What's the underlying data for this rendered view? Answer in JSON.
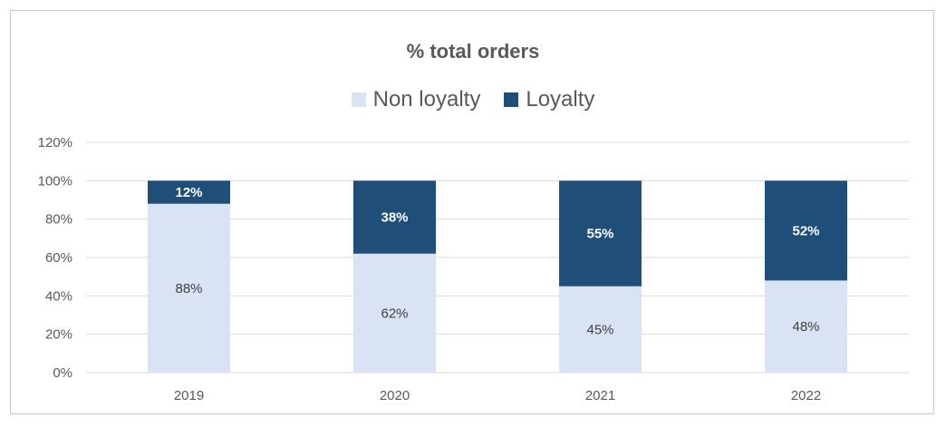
{
  "chart_data": {
    "type": "bar",
    "stacked": true,
    "title": "% total orders",
    "categories": [
      "2019",
      "2020",
      "2021",
      "2022"
    ],
    "series": [
      {
        "name": "Non loyalty",
        "values": [
          88,
          62,
          45,
          48
        ],
        "labels": [
          "88%",
          "62%",
          "45%",
          "48%"
        ],
        "color": "#dae3f3",
        "label_color": "#404040"
      },
      {
        "name": "Loyalty",
        "values": [
          12,
          38,
          55,
          52
        ],
        "labels": [
          "12%",
          "38%",
          "55%",
          "52%"
        ],
        "color": "#1f4e79",
        "label_color": "#ffffff"
      }
    ],
    "ylim": [
      0,
      120
    ],
    "yticks": [
      0,
      20,
      40,
      60,
      80,
      100,
      120
    ],
    "ytick_labels": [
      "0%",
      "20%",
      "40%",
      "60%",
      "80%",
      "100%",
      "120%"
    ],
    "grid": true,
    "legend_position": "top-center"
  }
}
